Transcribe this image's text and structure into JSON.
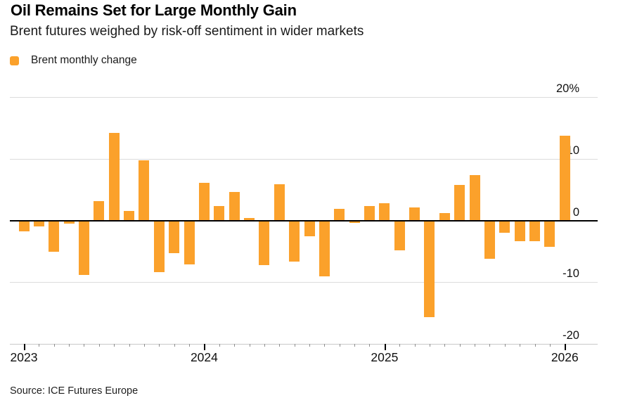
{
  "header": {
    "title": "Oil Remains Set for Large Monthly Gain",
    "subtitle": "Brent futures weighed by risk-off sentiment in wider markets"
  },
  "legend": {
    "label": "Brent monthly change"
  },
  "source": "Source: ICE Futures Europe",
  "colors": {
    "bar": "#FBA12B",
    "gridline": "#dcdcdc",
    "zero_axis": "#000000",
    "baseline": "#c9c9c9",
    "month_tick": "#8f8f8f",
    "year_tick": "#000000"
  },
  "chart_data": {
    "type": "bar",
    "title": "Oil Remains Set for Large Monthly Gain",
    "subtitle": "Brent futures weighed by risk-off sentiment in wider markets",
    "series_name": "Brent monthly change",
    "xlabel": "",
    "ylabel": "%",
    "ylim": [
      -20,
      20
    ],
    "grid": true,
    "legend_position": "top-left",
    "categories": [
      "Jan 2023",
      "Feb 2023",
      "Mar 2023",
      "Apr 2023",
      "May 2023",
      "Jun 2023",
      "Jul 2023",
      "Aug 2023",
      "Sep 2023",
      "Oct 2023",
      "Nov 2023",
      "Dec 2023",
      "Jan 2024",
      "Feb 2024",
      "Mar 2024",
      "Apr 2024",
      "May 2024",
      "Jun 2024",
      "Jul 2024",
      "Aug 2024",
      "Sep 2024",
      "Oct 2024",
      "Nov 2024",
      "Dec 2024",
      "Jan 2025",
      "Feb 2025",
      "Mar 2025",
      "Apr 2025",
      "May 2025",
      "Jun 2025",
      "Jul 2025",
      "Aug 2025",
      "Sep 2025",
      "Oct 2025",
      "Nov 2025",
      "Dec 2025",
      "Jan 2026"
    ],
    "values": [
      -1.7,
      -0.8,
      -5.0,
      -0.4,
      -8.7,
      3.1,
      14.2,
      1.5,
      9.7,
      -8.3,
      -5.2,
      -7.0,
      6.1,
      2.3,
      4.6,
      0.4,
      -7.1,
      5.9,
      -6.6,
      -2.4,
      -8.9,
      1.9,
      -0.3,
      2.3,
      2.8,
      -4.7,
      2.1,
      -15.6,
      1.2,
      5.8,
      7.3,
      -6.1,
      -1.9,
      -3.3,
      -3.2,
      -4.2,
      13.7
    ],
    "yticks": [
      {
        "label": "20%",
        "value": 20
      },
      {
        "label": "10",
        "value": 10
      },
      {
        "label": "0",
        "value": 0
      },
      {
        "label": "-10",
        "value": -10
      },
      {
        "label": "-20",
        "value": -20
      }
    ],
    "xticks": [
      {
        "label": "2023",
        "index": 0
      },
      {
        "label": "2024",
        "index": 12
      },
      {
        "label": "2025",
        "index": 24
      },
      {
        "label": "2026",
        "index": 36
      }
    ]
  }
}
